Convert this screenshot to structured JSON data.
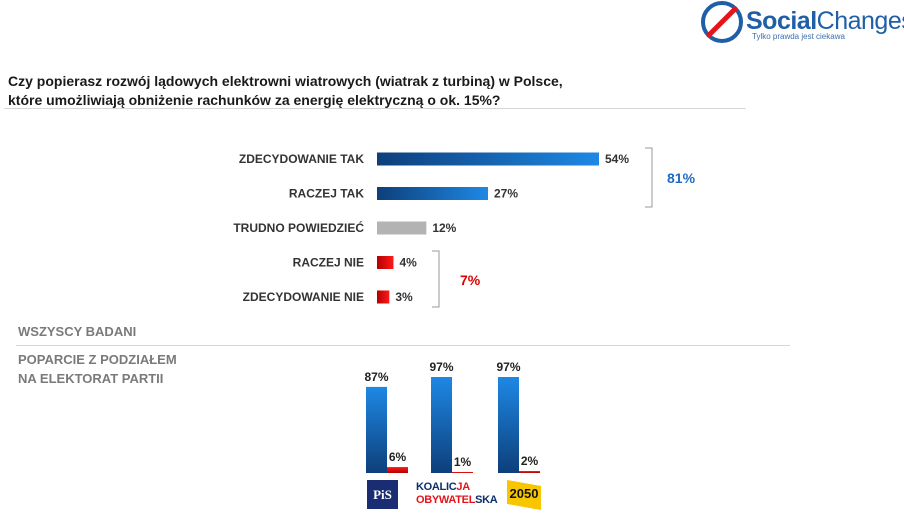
{
  "brand": {
    "name_bold": "Social",
    "name_light": "Changes",
    "tagline": "Tylko prawda jest ciekawa"
  },
  "question": {
    "line1": "Czy popierasz rozwój lądowych elektrowni wiatrowych (wiatrak z turbiną) w Polsce,",
    "line2": "które umożliwiają obniżenie rachunków za energię elektryczną o ok. 15%?"
  },
  "sections": {
    "all": "WSZYSCY BADANI",
    "by_party_line1": "POPARCIE Z PODZIAŁEM",
    "by_party_line2": "NA ELEKTORAT PARTII"
  },
  "summary": {
    "yes_total": "81%",
    "no_total": "7%"
  },
  "colors": {
    "blue_dark": "#0d3f7a",
    "blue_light": "#1e88e5",
    "gray": "#b3b3b3",
    "red_dark": "#b40000",
    "red_light": "#ff1a1a"
  },
  "chart_data": [
    {
      "type": "bar",
      "orientation": "horizontal",
      "categories": [
        "ZDECYDOWANIE TAK",
        "RACZEJ TAK",
        "TRUDNO POWIEDZIEĆ",
        "RACZEJ NIE",
        "ZDECYDOWANIE NIE"
      ],
      "values": [
        54,
        27,
        12,
        4,
        3
      ],
      "value_labels": [
        "54%",
        "27%",
        "12%",
        "4%",
        "3%"
      ],
      "bar_colors": [
        "blue",
        "blue",
        "gray",
        "red",
        "red"
      ],
      "xlim": [
        0,
        100
      ]
    },
    {
      "type": "bar",
      "orientation": "vertical",
      "categories": [
        "PiS",
        "KOALICJA OBYWATELSKA",
        "2050"
      ],
      "series": [
        {
          "values": [
            87,
            97,
            97
          ],
          "value_labels": [
            "87%",
            "97%",
            "97%"
          ],
          "color": "blue"
        },
        {
          "values": [
            6,
            1,
            2
          ],
          "value_labels": [
            "6%",
            "1%",
            "2%"
          ],
          "color": "red"
        }
      ],
      "ylim": [
        0,
        100
      ]
    }
  ],
  "party_logos": {
    "pis": "PiS",
    "ko_line1_a": "KOALIC",
    "ko_line1_b": "JA",
    "ko_line2_a": "OBYWATEL",
    "ko_line2_b": "SKA",
    "p2050": "2050"
  }
}
